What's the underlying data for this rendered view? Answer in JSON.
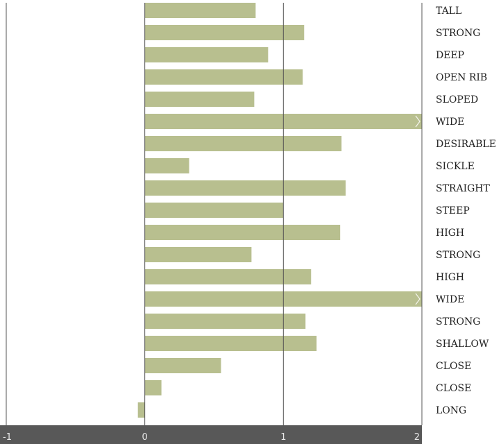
{
  "chart_data": {
    "type": "bar",
    "orientation": "horizontal",
    "categories": [
      "TALL",
      "STRONG",
      "DEEP",
      "OPEN RIB",
      "SLOPED",
      "WIDE",
      "DESIRABLE",
      "SICKLE",
      "STRAIGHT",
      "STEEP",
      "HIGH",
      "STRONG",
      "HIGH",
      "WIDE",
      "STRONG",
      "SHALLOW",
      "CLOSE",
      "CLOSE",
      "LONG"
    ],
    "values": [
      0.8,
      1.15,
      0.89,
      1.14,
      0.79,
      2.0,
      1.42,
      0.32,
      1.45,
      1.0,
      1.41,
      0.77,
      1.2,
      2.0,
      1.16,
      1.24,
      0.55,
      0.12,
      -0.05
    ],
    "overflow": [
      false,
      false,
      false,
      false,
      false,
      true,
      false,
      false,
      false,
      false,
      false,
      false,
      false,
      true,
      false,
      false,
      false,
      false,
      false
    ],
    "xlim": [
      -1,
      2
    ],
    "x_ticks": [
      "-1",
      "0",
      "1",
      "2"
    ],
    "title": "",
    "xlabel": "",
    "ylabel": "",
    "grid": false,
    "colors": {
      "bar": "#b8bf8f",
      "axis_bar": "#585858",
      "reference_line": "#555555",
      "tick_text": "#e8e8e8",
      "label_text": "#222222"
    }
  }
}
